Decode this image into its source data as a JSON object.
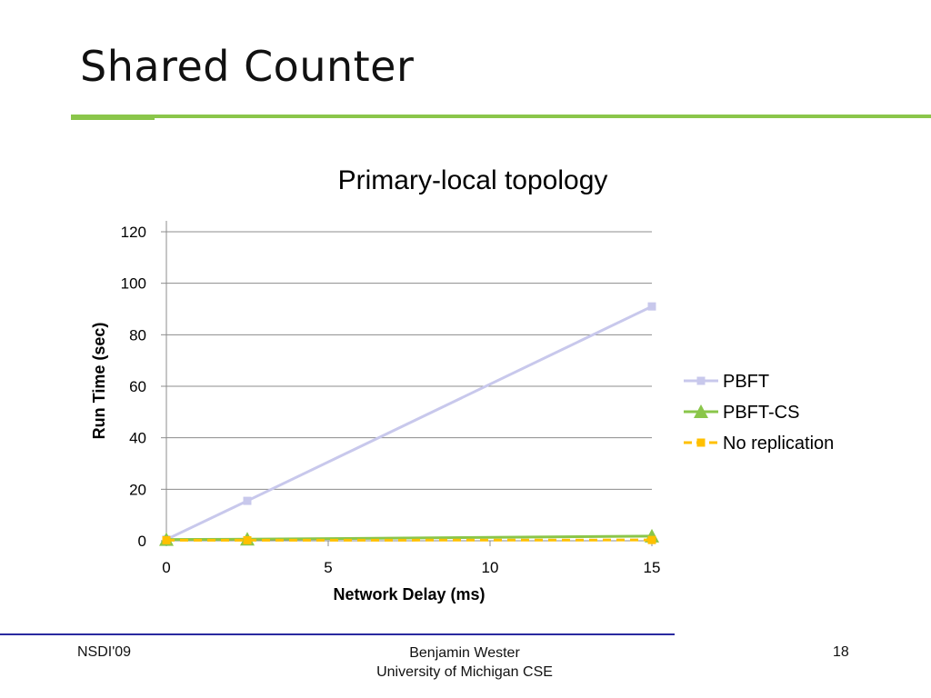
{
  "slide": {
    "title": "Shared Counter",
    "accent_color": "#8ac64a",
    "footer_rule_color": "#2a2aa0"
  },
  "footer": {
    "left": "NSDI'09",
    "center_line1": "Benjamin Wester",
    "center_line2": "University of Michigan CSE",
    "page_number": "18"
  },
  "chart_data": {
    "type": "line",
    "title": "Primary-local topology",
    "xlabel": "Network Delay (ms)",
    "ylabel": "Run Time (sec)",
    "xlim": [
      0,
      15
    ],
    "ylim": [
      0,
      120
    ],
    "xticks": [
      0,
      5,
      10,
      15
    ],
    "yticks": [
      0,
      20,
      40,
      60,
      80,
      100,
      120
    ],
    "grid": "horizontal",
    "legend_position": "right",
    "series": [
      {
        "name": "PBFT",
        "color": "#c8c8ec",
        "marker": "square",
        "dashed": false,
        "x": [
          0,
          2.5,
          15
        ],
        "y": [
          0.5,
          15.5,
          91
        ]
      },
      {
        "name": "PBFT-CS",
        "color": "#8ac64a",
        "marker": "triangle",
        "dashed": false,
        "x": [
          0,
          2.5,
          15
        ],
        "y": [
          0.5,
          0.6,
          1.8
        ]
      },
      {
        "name": "No replication",
        "color": "#ffc000",
        "marker": "square",
        "dashed": true,
        "x": [
          0,
          2.5,
          15
        ],
        "y": [
          0.2,
          0.2,
          0.3
        ]
      }
    ]
  }
}
